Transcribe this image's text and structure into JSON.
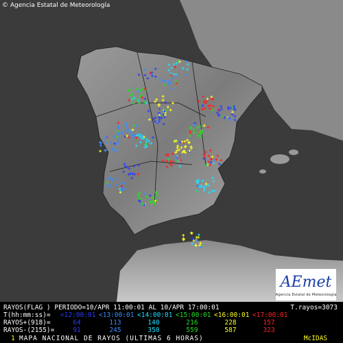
{
  "header": {
    "credit": "© Agencia Estatal de Meteorología"
  },
  "logo": {
    "name": "AEmet",
    "subtitle": "Agencia Estatal de Meteorología"
  },
  "legend": {
    "period_line": "RAYOS(FLAG ) PERIODO=10/APR 11:00:01 AL 10/APR 17:00:01",
    "total": "T.rayos=3073",
    "time_label": "T(hh:mm:ss)=",
    "positive_label": "RAYOS+(918)=",
    "negative_label": "RAYOS-(2155)=",
    "columns": [
      {
        "time": "<12:00:01",
        "color": "#2a3cff",
        "positive": 64,
        "negative": 91
      },
      {
        "time": "<13:00:01",
        "color": "#3a8cff",
        "positive": 113,
        "negative": 245
      },
      {
        "time": "<14:00:01",
        "color": "#20e0ff",
        "positive": 140,
        "negative": 350
      },
      {
        "time": "<15:00:01",
        "color": "#20e020",
        "positive": 216,
        "negative": 559
      },
      {
        "time": "<16:00:01",
        "color": "#ffff20",
        "positive": 228,
        "negative": 587
      },
      {
        "time": "<17:00:01",
        "color": "#ff2020",
        "positive": 157,
        "negative": 323
      }
    ]
  },
  "footer": {
    "frame": "1",
    "title": "MAPA NACIONAL DE RAYOS (ULTIMAS 6 HORAS)",
    "system": "McIDAS"
  }
}
